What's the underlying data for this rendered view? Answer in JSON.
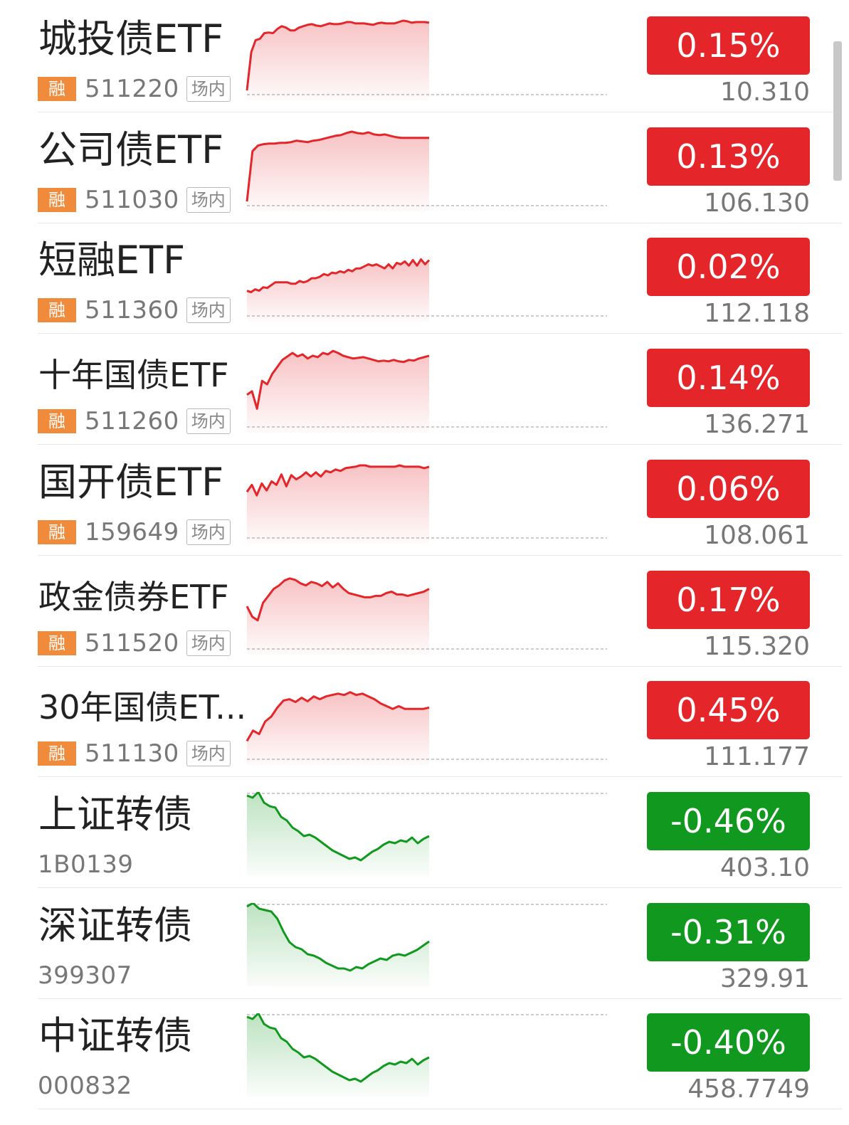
{
  "colors": {
    "up": "#e4262b",
    "down": "#11991f",
    "rong_badge": "#ef8b3b"
  },
  "rows": [
    {
      "name": "城投债ETF",
      "rong": "融",
      "code": "511220",
      "market": "场内",
      "pct": "0.15%",
      "price": "10.310",
      "trend": "up",
      "spark": [
        0,
        55,
        72,
        74,
        82,
        83,
        82,
        88,
        92,
        90,
        86,
        86,
        90,
        92,
        94,
        95,
        93,
        92,
        94,
        96,
        95,
        95,
        96,
        98,
        98,
        96,
        96,
        96,
        95,
        94,
        96,
        97,
        96,
        96,
        96,
        98,
        100,
        99,
        97,
        98,
        98,
        98,
        97
      ]
    },
    {
      "name": "公司债ETF",
      "rong": "融",
      "code": "511030",
      "market": "场内",
      "pct": "0.13%",
      "price": "106.130",
      "trend": "up",
      "spark": [
        0,
        72,
        80,
        82,
        83,
        83,
        84,
        84,
        85,
        87,
        86,
        85,
        87,
        88,
        90,
        92,
        94,
        95,
        98,
        100,
        98,
        97,
        99,
        96,
        95,
        96,
        94,
        92,
        91,
        91,
        91,
        91,
        91,
        91
      ]
    },
    {
      "name": "短融ETF",
      "rong": "融",
      "code": "511360",
      "market": "场内",
      "pct": "0.02%",
      "price": "112.118",
      "trend": "up",
      "spark": [
        30,
        28,
        32,
        30,
        35,
        34,
        38,
        42,
        42,
        42,
        42,
        40,
        40,
        44,
        42,
        44,
        48,
        48,
        50,
        54,
        52,
        56,
        55,
        58,
        56,
        60,
        58,
        62,
        62,
        65,
        68,
        66,
        68,
        65,
        62,
        68,
        62,
        70,
        68,
        72,
        66,
        74,
        66,
        75,
        68,
        74
      ]
    },
    {
      "name": "十年国债ETF",
      "rong": "融",
      "code": "511260",
      "market": "场内",
      "pct": "0.14%",
      "price": "136.271",
      "trend": "up",
      "spark": [
        40,
        45,
        20,
        60,
        55,
        70,
        80,
        90,
        95,
        100,
        95,
        98,
        92,
        96,
        94,
        100,
        98,
        103,
        100,
        96,
        94,
        92,
        93,
        94,
        92,
        90,
        88,
        89,
        88,
        90,
        88,
        87,
        90,
        89,
        92,
        94,
        96
      ]
    },
    {
      "name": "国开债ETF",
      "rong": "融",
      "code": "159649",
      "market": "场内",
      "pct": "0.06%",
      "price": "108.061",
      "trend": "up",
      "spark": [
        60,
        70,
        55,
        72,
        62,
        75,
        70,
        85,
        68,
        84,
        78,
        82,
        88,
        82,
        88,
        82,
        90,
        88,
        92,
        90,
        94,
        95,
        96,
        98,
        98,
        96,
        96,
        96,
        96,
        96,
        96,
        98,
        96,
        96,
        96,
        96,
        94,
        96
      ]
    },
    {
      "name": "政金债券ETF",
      "rong": "融",
      "code": "511520",
      "market": "场内",
      "pct": "0.17%",
      "price": "115.320",
      "trend": "up",
      "spark": [
        55,
        40,
        35,
        60,
        70,
        80,
        85,
        92,
        95,
        93,
        88,
        85,
        90,
        88,
        84,
        90,
        82,
        88,
        80,
        74,
        72,
        70,
        68,
        68,
        70,
        70,
        74,
        76,
        72,
        72,
        70,
        72,
        74,
        76,
        80
      ]
    },
    {
      "name": "30年国债ET...",
      "rong": "融",
      "code": "511130",
      "market": "场内",
      "pct": "0.45%",
      "price": "111.177",
      "trend": "up",
      "spark": [
        20,
        35,
        30,
        48,
        55,
        68,
        78,
        80,
        76,
        82,
        77,
        84,
        80,
        84,
        86,
        88,
        86,
        90,
        86,
        88,
        84,
        80,
        74,
        70,
        66,
        70,
        66,
        66,
        66,
        66,
        68
      ]
    },
    {
      "name": "上证转债",
      "code": "1B0139",
      "pct": "-0.46%",
      "price": "403.10",
      "trend": "down",
      "spark": [
        95,
        92,
        100,
        85,
        80,
        78,
        65,
        60,
        50,
        45,
        38,
        40,
        36,
        30,
        24,
        18,
        14,
        10,
        6,
        8,
        4,
        10,
        16,
        20,
        26,
        30,
        28,
        32,
        30,
        36,
        28,
        34,
        38
      ]
    },
    {
      "name": "深证转债",
      "code": "399307",
      "pct": "-0.31%",
      "price": "329.91",
      "trend": "down",
      "spark": [
        95,
        100,
        92,
        90,
        88,
        78,
        60,
        45,
        38,
        35,
        28,
        26,
        22,
        16,
        12,
        8,
        8,
        5,
        10,
        8,
        14,
        18,
        22,
        20,
        26,
        28,
        26,
        30,
        34,
        40,
        46
      ]
    },
    {
      "name": "中证转债",
      "code": "000832",
      "pct": "-0.40%",
      "price": "458.7749",
      "trend": "down",
      "spark": [
        95,
        92,
        100,
        85,
        80,
        78,
        65,
        60,
        50,
        45,
        38,
        40,
        36,
        30,
        24,
        18,
        14,
        10,
        6,
        8,
        4,
        10,
        16,
        20,
        26,
        30,
        28,
        32,
        30,
        36,
        28,
        34,
        38
      ]
    }
  ]
}
